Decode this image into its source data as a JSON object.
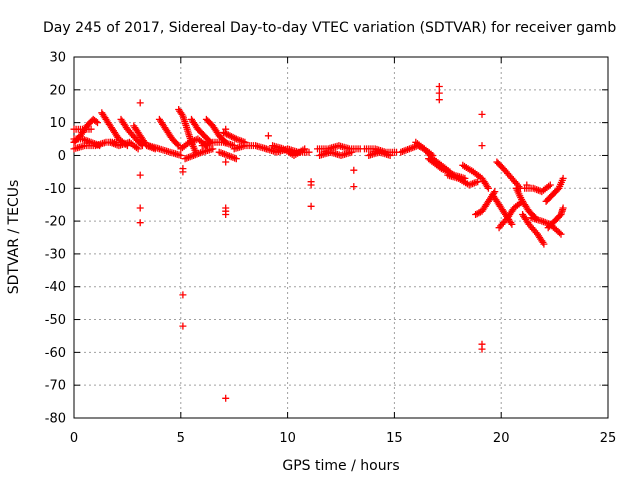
{
  "chart_data": {
    "type": "scatter",
    "title": "Day 245 of 2017, Sidereal Day-to-day VTEC variation (SDTVAR) for receiver gamb",
    "xlabel": "GPS time / hours",
    "ylabel": "SDTVAR / TECUs",
    "xlim": [
      0,
      25
    ],
    "ylim": [
      -80,
      30
    ],
    "xticks": [
      0,
      5,
      10,
      15,
      20,
      25
    ],
    "yticks": [
      -80,
      -70,
      -60,
      -50,
      -40,
      -30,
      -20,
      -10,
      0,
      10,
      20,
      30
    ],
    "grid": true,
    "marker": "+",
    "color": "#ff0000",
    "series": [
      {
        "name": "SDTVAR",
        "segments": [
          [
            [
              0.0,
              4
            ],
            [
              0.3,
              6
            ],
            [
              0.6,
              9
            ],
            [
              0.9,
              11
            ],
            [
              1.1,
              10
            ]
          ],
          [
            [
              0.0,
              8
            ],
            [
              0.4,
              8
            ],
            [
              0.8,
              8
            ]
          ],
          [
            [
              0.0,
              2
            ],
            [
              0.5,
              3
            ],
            [
              1.0,
              3
            ],
            [
              1.5,
              4
            ],
            [
              2.0,
              4
            ]
          ],
          [
            [
              0.0,
              5
            ],
            [
              0.4,
              5
            ],
            [
              0.8,
              4
            ],
            [
              1.2,
              3
            ]
          ],
          [
            [
              1.3,
              13
            ],
            [
              1.5,
              11
            ],
            [
              1.8,
              8
            ],
            [
              2.1,
              5
            ],
            [
              2.5,
              3
            ]
          ],
          [
            [
              1.7,
              4
            ],
            [
              2.1,
              3
            ],
            [
              2.6,
              4
            ],
            [
              3.0,
              2
            ]
          ],
          [
            [
              2.2,
              11
            ],
            [
              2.5,
              8
            ],
            [
              2.9,
              5
            ],
            [
              3.2,
              3
            ]
          ],
          [
            [
              2.8,
              9
            ],
            [
              3.1,
              6
            ],
            [
              3.4,
              3
            ],
            [
              3.8,
              2
            ]
          ],
          [
            [
              3.5,
              3
            ],
            [
              4.0,
              2
            ],
            [
              4.5,
              1
            ],
            [
              5.0,
              0
            ]
          ],
          [
            [
              4.0,
              11
            ],
            [
              4.3,
              8
            ],
            [
              4.6,
              5
            ],
            [
              4.9,
              3
            ]
          ],
          [
            [
              4.9,
              14
            ],
            [
              5.1,
              12
            ],
            [
              5.3,
              8
            ],
            [
              5.5,
              4
            ],
            [
              5.7,
              1
            ]
          ],
          [
            [
              5.0,
              2
            ],
            [
              5.4,
              4
            ],
            [
              5.8,
              5
            ],
            [
              6.2,
              3
            ]
          ],
          [
            [
              5.5,
              11
            ],
            [
              5.8,
              8
            ],
            [
              6.1,
              6
            ],
            [
              6.4,
              4
            ]
          ],
          [
            [
              5.2,
              -1
            ],
            [
              5.6,
              0
            ],
            [
              6.0,
              1
            ],
            [
              6.5,
              2
            ]
          ],
          [
            [
              6.2,
              11
            ],
            [
              6.5,
              9
            ],
            [
              6.8,
              6
            ],
            [
              7.1,
              4
            ]
          ],
          [
            [
              6.0,
              3
            ],
            [
              6.5,
              4
            ],
            [
              7.0,
              4
            ],
            [
              7.5,
              3
            ]
          ],
          [
            [
              6.8,
              1
            ],
            [
              7.2,
              0
            ],
            [
              7.6,
              -1
            ]
          ],
          [
            [
              7.0,
              7
            ],
            [
              7.3,
              6
            ],
            [
              7.6,
              5
            ],
            [
              8.0,
              4
            ]
          ],
          [
            [
              7.5,
              2
            ],
            [
              8.0,
              3
            ],
            [
              8.5,
              3
            ],
            [
              9.0,
              2
            ]
          ],
          [
            [
              9.0,
              2
            ],
            [
              9.5,
              1
            ],
            [
              10.0,
              2
            ],
            [
              10.5,
              1
            ],
            [
              11.0,
              1
            ]
          ],
          [
            [
              9.3,
              3
            ],
            [
              9.8,
              2
            ],
            [
              10.3,
              0
            ],
            [
              10.8,
              2
            ]
          ],
          [
            [
              11.4,
              2
            ],
            [
              11.9,
              2
            ],
            [
              12.4,
              3
            ],
            [
              12.9,
              2
            ],
            [
              13.4,
              2
            ]
          ],
          [
            [
              11.5,
              0
            ],
            [
              12.0,
              1
            ],
            [
              12.5,
              0
            ],
            [
              13.0,
              1
            ]
          ],
          [
            [
              13.6,
              2
            ],
            [
              14.1,
              2
            ],
            [
              14.6,
              1
            ],
            [
              15.1,
              1
            ]
          ],
          [
            [
              13.8,
              0
            ],
            [
              14.3,
              1
            ],
            [
              14.8,
              0
            ]
          ],
          [
            [
              15.3,
              1
            ],
            [
              15.7,
              2
            ],
            [
              16.1,
              3
            ],
            [
              16.4,
              2
            ],
            [
              16.8,
              0
            ]
          ],
          [
            [
              16.0,
              4
            ],
            [
              16.4,
              2
            ],
            [
              16.8,
              -1
            ],
            [
              17.2,
              -3
            ],
            [
              17.6,
              -5
            ]
          ],
          [
            [
              16.6,
              -1
            ],
            [
              17.2,
              -4
            ],
            [
              17.8,
              -6
            ],
            [
              18.3,
              -7
            ]
          ],
          [
            [
              17.5,
              -6
            ],
            [
              18.0,
              -7
            ],
            [
              18.5,
              -9
            ],
            [
              18.9,
              -8
            ]
          ],
          [
            [
              18.2,
              -3
            ],
            [
              18.7,
              -5
            ],
            [
              19.1,
              -7
            ],
            [
              19.4,
              -10
            ]
          ],
          [
            [
              18.8,
              -18
            ],
            [
              19.1,
              -17
            ],
            [
              19.4,
              -14
            ],
            [
              19.7,
              -11
            ]
          ],
          [
            [
              19.6,
              -12
            ],
            [
              19.9,
              -15
            ],
            [
              20.2,
              -18
            ],
            [
              20.5,
              -21
            ]
          ],
          [
            [
              19.8,
              -2
            ],
            [
              20.1,
              -4
            ],
            [
              20.5,
              -7
            ],
            [
              20.9,
              -10
            ]
          ],
          [
            [
              19.9,
              -22
            ],
            [
              20.3,
              -19
            ],
            [
              20.6,
              -16
            ],
            [
              21.0,
              -14
            ]
          ],
          [
            [
              20.7,
              -10
            ],
            [
              21.0,
              -14
            ],
            [
              21.3,
              -17
            ],
            [
              21.6,
              -19
            ]
          ],
          [
            [
              21.0,
              -18
            ],
            [
              21.3,
              -21
            ],
            [
              21.7,
              -24
            ],
            [
              22.0,
              -27
            ]
          ],
          [
            [
              21.1,
              -10
            ],
            [
              21.5,
              -10
            ],
            [
              21.9,
              -11
            ],
            [
              22.3,
              -9
            ]
          ],
          [
            [
              21.4,
              -19
            ],
            [
              21.9,
              -20
            ],
            [
              22.3,
              -21
            ],
            [
              22.8,
              -24
            ]
          ],
          [
            [
              22.1,
              -14
            ],
            [
              22.4,
              -12
            ],
            [
              22.7,
              -10
            ],
            [
              22.9,
              -7
            ]
          ],
          [
            [
              22.2,
              -22
            ],
            [
              22.5,
              -20
            ],
            [
              22.8,
              -18
            ],
            [
              22.9,
              -16
            ]
          ]
        ],
        "outliers": [
          [
            3.1,
            16
          ],
          [
            3.1,
            -6
          ],
          [
            3.1,
            -16
          ],
          [
            3.1,
            -20.5
          ],
          [
            5.1,
            -4
          ],
          [
            5.1,
            -5
          ],
          [
            5.1,
            -42.5
          ],
          [
            5.1,
            -52
          ],
          [
            7.1,
            8
          ],
          [
            7.1,
            -2
          ],
          [
            7.1,
            -16
          ],
          [
            7.1,
            -17
          ],
          [
            7.1,
            -18
          ],
          [
            7.1,
            -74
          ],
          [
            9.1,
            6
          ],
          [
            11.1,
            -8
          ],
          [
            11.1,
            -9
          ],
          [
            11.1,
            -15.5
          ],
          [
            13.1,
            -4.5
          ],
          [
            13.1,
            -9.5
          ],
          [
            17.1,
            21
          ],
          [
            17.1,
            19
          ],
          [
            17.1,
            17
          ],
          [
            19.1,
            12.5
          ],
          [
            19.1,
            3
          ],
          [
            19.1,
            -57.5
          ],
          [
            19.1,
            -59
          ],
          [
            21.2,
            -9
          ]
        ]
      }
    ]
  }
}
